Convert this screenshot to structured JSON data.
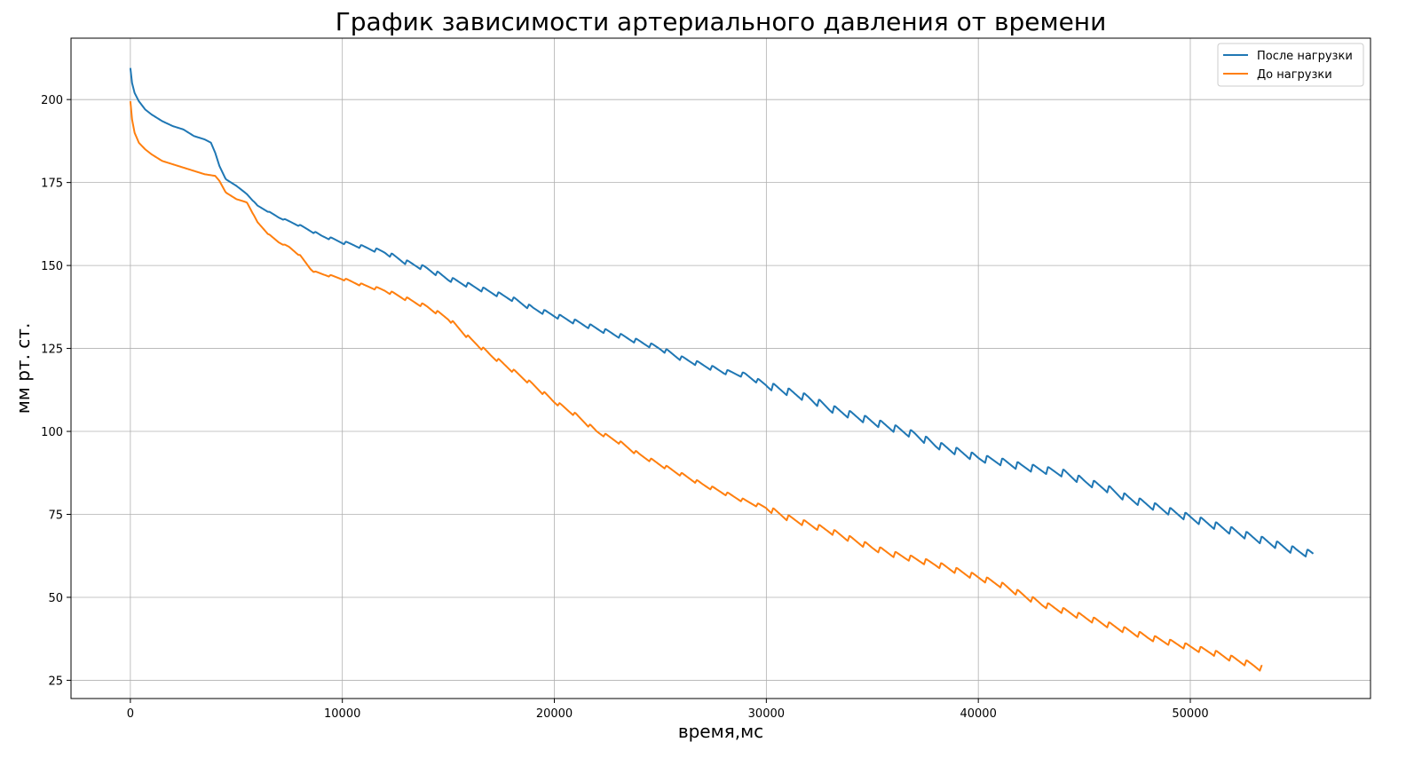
{
  "chart_data": {
    "type": "line",
    "title": "График зависимости артериального давления от времени",
    "xlabel": "время,мс",
    "ylabel": "мм рт. ст.",
    "xlim": [
      -2800,
      58500
    ],
    "ylim": [
      19.5,
      218.5
    ],
    "xticks": [
      0,
      10000,
      20000,
      30000,
      40000,
      50000
    ],
    "yticks": [
      25,
      50,
      75,
      100,
      125,
      150,
      175,
      200
    ],
    "grid": true,
    "legend_position": "top-right",
    "series": [
      {
        "name": "После нагрузки",
        "color": "#1f77b4",
        "ripple": 0.9,
        "points": [
          [
            0,
            209.5
          ],
          [
            80,
            205
          ],
          [
            200,
            202
          ],
          [
            400,
            199.5
          ],
          [
            700,
            197
          ],
          [
            1000,
            195.5
          ],
          [
            1500,
            193.5
          ],
          [
            2000,
            192
          ],
          [
            2500,
            191
          ],
          [
            3000,
            189
          ],
          [
            3500,
            188
          ],
          [
            3800,
            187
          ],
          [
            4000,
            184
          ],
          [
            4200,
            180
          ],
          [
            4500,
            176
          ],
          [
            5000,
            174
          ],
          [
            5500,
            171.5
          ],
          [
            6000,
            168
          ],
          [
            7000,
            164.5
          ],
          [
            8000,
            162
          ],
          [
            9000,
            159
          ],
          [
            10000,
            157
          ],
          [
            11000,
            155.5
          ],
          [
            12000,
            154
          ],
          [
            13000,
            151
          ],
          [
            14000,
            149
          ],
          [
            15000,
            146
          ],
          [
            16000,
            144
          ],
          [
            17000,
            142
          ],
          [
            18000,
            140
          ],
          [
            19000,
            137
          ],
          [
            20000,
            135
          ],
          [
            21000,
            133
          ],
          [
            22000,
            131
          ],
          [
            23000,
            129
          ],
          [
            24000,
            127
          ],
          [
            25000,
            125
          ],
          [
            26000,
            122
          ],
          [
            27000,
            120
          ],
          [
            28000,
            118
          ],
          [
            29000,
            117
          ],
          [
            30000,
            114
          ],
          [
            31000,
            112
          ],
          [
            32000,
            110
          ],
          [
            33000,
            107
          ],
          [
            34000,
            105
          ],
          [
            35000,
            103
          ],
          [
            36000,
            101
          ],
          [
            37000,
            99
          ],
          [
            38000,
            96
          ],
          [
            39000,
            94
          ],
          [
            40000,
            92
          ],
          [
            41000,
            91
          ],
          [
            42000,
            89.5
          ],
          [
            43000,
            88.5
          ],
          [
            44000,
            87.5
          ],
          [
            45000,
            85
          ],
          [
            46000,
            83
          ],
          [
            47000,
            80
          ],
          [
            48000,
            78
          ],
          [
            49000,
            76
          ],
          [
            50000,
            74
          ],
          [
            51000,
            72
          ],
          [
            52000,
            70
          ],
          [
            53000,
            68
          ],
          [
            54000,
            66
          ],
          [
            55000,
            64
          ],
          [
            55800,
            63
          ]
        ]
      },
      {
        "name": "До нагрузки",
        "color": "#ff7f0e",
        "ripple": 0.7,
        "points": [
          [
            0,
            199.5
          ],
          [
            80,
            194
          ],
          [
            200,
            190
          ],
          [
            400,
            187
          ],
          [
            700,
            185
          ],
          [
            1000,
            183.5
          ],
          [
            1500,
            181.5
          ],
          [
            2000,
            180.5
          ],
          [
            2500,
            179.5
          ],
          [
            3000,
            178.5
          ],
          [
            3500,
            177.5
          ],
          [
            4000,
            177
          ],
          [
            4200,
            175.5
          ],
          [
            4500,
            172
          ],
          [
            5000,
            170
          ],
          [
            5500,
            169
          ],
          [
            6000,
            163
          ],
          [
            6500,
            159.5
          ],
          [
            7000,
            157
          ],
          [
            7500,
            155.5
          ],
          [
            8000,
            153
          ],
          [
            8500,
            149
          ],
          [
            8700,
            148
          ],
          [
            9000,
            147.5
          ],
          [
            10000,
            146
          ],
          [
            11000,
            144
          ],
          [
            12000,
            142.5
          ],
          [
            13000,
            140
          ],
          [
            14000,
            137.5
          ],
          [
            15000,
            134
          ],
          [
            15500,
            131
          ],
          [
            16000,
            128
          ],
          [
            17000,
            123
          ],
          [
            18000,
            118.5
          ],
          [
            19000,
            114
          ],
          [
            20000,
            109
          ],
          [
            21000,
            105
          ],
          [
            22000,
            100
          ],
          [
            23000,
            97
          ],
          [
            24000,
            93
          ],
          [
            25000,
            90
          ],
          [
            26000,
            87
          ],
          [
            27000,
            84
          ],
          [
            28000,
            81.5
          ],
          [
            29000,
            79
          ],
          [
            30000,
            77
          ],
          [
            31000,
            74
          ],
          [
            32000,
            72
          ],
          [
            33000,
            70
          ],
          [
            34000,
            67.5
          ],
          [
            35000,
            65
          ],
          [
            36000,
            63
          ],
          [
            37000,
            61.5
          ],
          [
            38000,
            60
          ],
          [
            39000,
            58
          ],
          [
            40000,
            56
          ],
          [
            41000,
            54
          ],
          [
            42000,
            51
          ],
          [
            43000,
            48
          ],
          [
            44000,
            46
          ],
          [
            45000,
            44
          ],
          [
            46000,
            42
          ],
          [
            47000,
            40
          ],
          [
            48000,
            38
          ],
          [
            49000,
            36.5
          ],
          [
            50000,
            35
          ],
          [
            51000,
            33.5
          ],
          [
            52000,
            31.5
          ],
          [
            53000,
            29.5
          ],
          [
            53400,
            28.5
          ]
        ]
      }
    ]
  }
}
